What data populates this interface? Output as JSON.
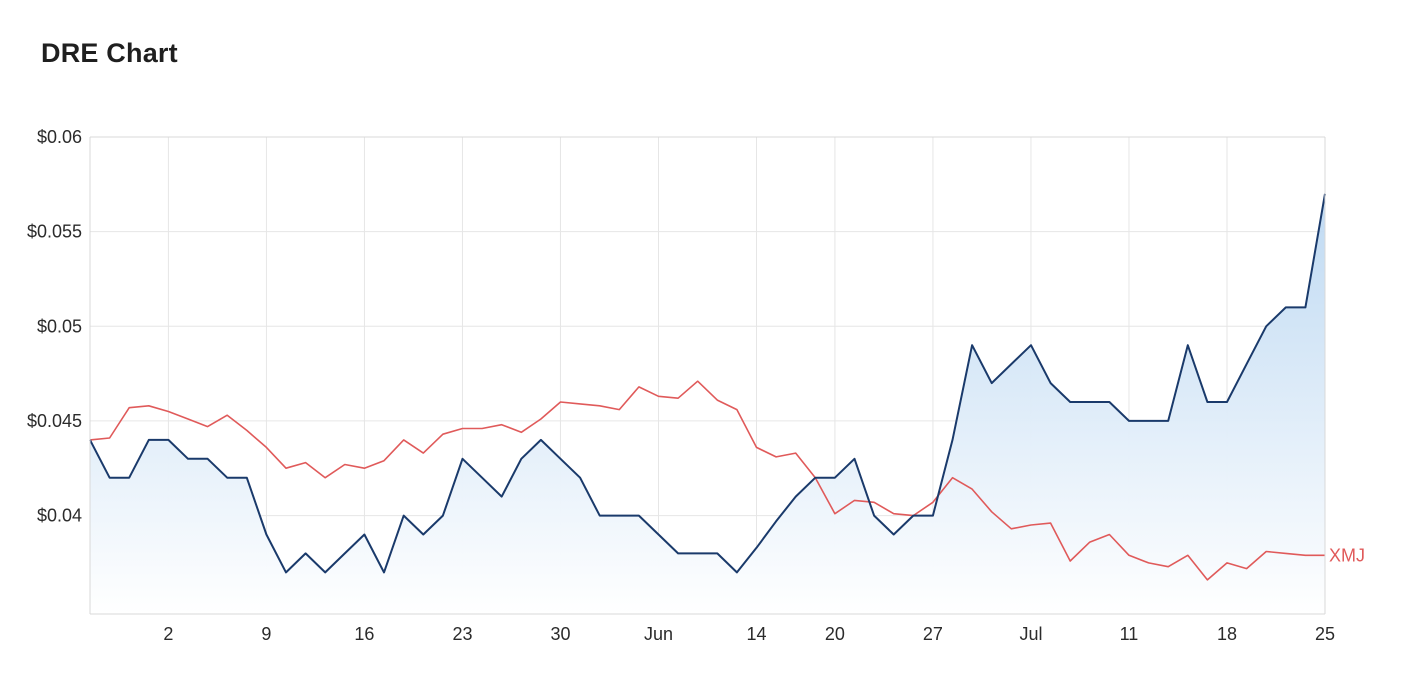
{
  "title": "DRE Chart",
  "colors": {
    "dre": "#1a3a6b",
    "xmj": "#e05a5a",
    "area_top": "#bcd8f2",
    "area_bottom": "#ffffff"
  },
  "chart_data": {
    "type": "line",
    "ylim": [
      0.0348,
      0.06
    ],
    "y_ticks": [
      {
        "value": 0.06,
        "label": "$0.06"
      },
      {
        "value": 0.055,
        "label": "$0.055"
      },
      {
        "value": 0.05,
        "label": "$0.05"
      },
      {
        "value": 0.045,
        "label": "$0.045"
      },
      {
        "value": 0.04,
        "label": "$0.04"
      }
    ],
    "x_ticks": [
      {
        "i": 4,
        "label": "2"
      },
      {
        "i": 9,
        "label": "9"
      },
      {
        "i": 14,
        "label": "16"
      },
      {
        "i": 19,
        "label": "23"
      },
      {
        "i": 24,
        "label": "30"
      },
      {
        "i": 29,
        "label": "Jun"
      },
      {
        "i": 34,
        "label": "14"
      },
      {
        "i": 38,
        "label": "20"
      },
      {
        "i": 43,
        "label": "27"
      },
      {
        "i": 48,
        "label": "Jul"
      },
      {
        "i": 53,
        "label": "11"
      },
      {
        "i": 58,
        "label": "18"
      },
      {
        "i": 63,
        "label": "25"
      }
    ],
    "grid": true,
    "series": [
      {
        "values": [
          0.044,
          0.042,
          0.042,
          0.044,
          0.044,
          0.043,
          0.043,
          0.042,
          0.042,
          0.039,
          0.037,
          0.038,
          0.037,
          0.038,
          0.039,
          0.037,
          0.04,
          0.039,
          0.04,
          0.043,
          0.042,
          0.041,
          0.043,
          0.044,
          0.043,
          0.042,
          0.04,
          0.04,
          0.04,
          0.039,
          0.038,
          0.038,
          0.038,
          0.037,
          0.0383,
          0.0397,
          0.041,
          0.042,
          0.042,
          0.043,
          0.04,
          0.039,
          0.04,
          0.04,
          0.044,
          0.049,
          0.047,
          0.048,
          0.049,
          0.047,
          0.046,
          0.046,
          0.046,
          0.045,
          0.045,
          0.045,
          0.049,
          0.046,
          0.046,
          0.048,
          0.05,
          0.051,
          0.051,
          0.057
        ]
      },
      {
        "name": "XMJ",
        "values": [
          0.044,
          0.0441,
          0.0457,
          0.0458,
          0.0455,
          0.0451,
          0.0447,
          0.0453,
          0.0445,
          0.0436,
          0.0425,
          0.0428,
          0.042,
          0.0427,
          0.0425,
          0.0429,
          0.044,
          0.0433,
          0.0443,
          0.0446,
          0.0446,
          0.0448,
          0.0444,
          0.0451,
          0.046,
          0.0459,
          0.0458,
          0.0456,
          0.0468,
          0.0463,
          0.0462,
          0.0471,
          0.0461,
          0.0456,
          0.0436,
          0.0431,
          0.0433,
          0.042,
          0.0401,
          0.0408,
          0.0407,
          0.0401,
          0.04,
          0.0407,
          0.042,
          0.0414,
          0.0402,
          0.0393,
          0.0395,
          0.0396,
          0.0376,
          0.0386,
          0.039,
          0.0379,
          0.0375,
          0.0373,
          0.0379,
          0.0366,
          0.0375,
          0.0372,
          0.0381,
          0.038,
          0.0379,
          0.0379
        ]
      }
    ]
  }
}
